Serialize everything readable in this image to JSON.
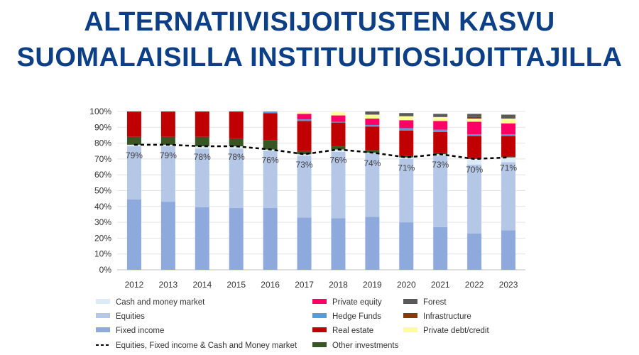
{
  "title": {
    "line1": "ALTERNATIIVISIJOITUSTEN KASVU",
    "line2": "SUOMALAISILLA INSTITUUTIOSIJOITTAJILLA"
  },
  "chart_data": {
    "type": "bar",
    "stacked": true,
    "categories": [
      "2012",
      "2013",
      "2014",
      "2015",
      "2016",
      "2017",
      "2018",
      "2019",
      "2020",
      "2021",
      "2022",
      "2023"
    ],
    "y_ticks": [
      "0%",
      "10%",
      "20%",
      "30%",
      "40%",
      "50%",
      "60%",
      "70%",
      "80%",
      "90%",
      "100%"
    ],
    "ylim": [
      0,
      100
    ],
    "legend_position": "bottom",
    "series": [
      {
        "name": "Fixed income",
        "color": "#8eaadc",
        "values": [
          44.5,
          43,
          39.5,
          39,
          39,
          33,
          32.5,
          33.5,
          30,
          27,
          23,
          25
        ]
      },
      {
        "name": "Equities",
        "color": "#b4c7e7",
        "values": [
          33.5,
          35,
          37,
          37.5,
          36,
          39,
          42,
          40,
          40,
          45,
          43.5,
          43
        ]
      },
      {
        "name": "Cash and money market",
        "color": "#ddebf7",
        "values": [
          1,
          1,
          1.5,
          1.5,
          1,
          1,
          1.5,
          0.5,
          1,
          1,
          3.5,
          3
        ]
      },
      {
        "name": "Other investments",
        "color": "#375623",
        "values": [
          5,
          5,
          6,
          5,
          6,
          2,
          2,
          1.5,
          1,
          1,
          0.5,
          0.5
        ]
      },
      {
        "name": "Real estate",
        "color": "#c00000",
        "values": [
          16,
          16,
          16,
          17,
          17,
          19,
          15,
          15,
          16,
          13,
          14,
          13
        ]
      },
      {
        "name": "Hedge Funds",
        "color": "#5b9bd5",
        "values": [
          0,
          0,
          0,
          0,
          1,
          1,
          0.5,
          1,
          1.5,
          1.5,
          1,
          1
        ]
      },
      {
        "name": "Private equity",
        "color": "#ff0066",
        "values": [
          0,
          0,
          0,
          0,
          0,
          3.5,
          4,
          4,
          5,
          5.5,
          8,
          7
        ]
      },
      {
        "name": "Private debt/credit",
        "color": "#ffff99",
        "values": [
          0,
          0,
          0,
          0,
          0,
          1.5,
          2.5,
          2.5,
          2.5,
          2.5,
          2,
          3
        ]
      },
      {
        "name": "Infrastructure",
        "color": "#843c0c",
        "values": [
          0,
          0,
          0,
          0,
          0,
          0,
          0,
          0,
          0,
          0,
          1,
          0
        ]
      },
      {
        "name": "Forest",
        "color": "#595959",
        "values": [
          0,
          0,
          0,
          0,
          0,
          0,
          0,
          2,
          2,
          2,
          2,
          2.5
        ]
      }
    ],
    "line_series": {
      "name": "Equities, Fixed income & Cash and Money market",
      "values": [
        79,
        79,
        78,
        78,
        76,
        73,
        76,
        74,
        71,
        73,
        70,
        71
      ],
      "labels": [
        "79%",
        "79%",
        "78%",
        "78%",
        "76%",
        "73%",
        "76%",
        "74%",
        "71%",
        "73%",
        "70%",
        "71%"
      ],
      "color": "#000000"
    },
    "legend": [
      [
        "Cash and money market",
        "Private equity",
        "Forest"
      ],
      [
        "Equities",
        "Hedge Funds",
        "Infrastructure"
      ],
      [
        "Fixed income",
        "Real estate",
        "Private debt/credit"
      ],
      [
        "Equities, Fixed income & Cash and Money market",
        "Other investments"
      ]
    ]
  }
}
